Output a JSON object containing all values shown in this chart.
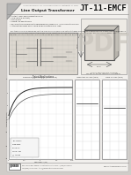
{
  "title": "JT-11-EMCF",
  "bg_color": "#e8e8e8",
  "paper_color": "#f2f0ed",
  "title_color": "#111111",
  "text_color": "#333333",
  "light_text": "#666666",
  "border_color": "#999999",
  "fold_color": "#b0b0b0",
  "fold_dark": "#888888",
  "footer_text": "jensen-transformers.com",
  "schematic_bg": "#ddd8d0",
  "chart_bg": "#e8e4de",
  "grid_color": "#c0bbb5",
  "curve_color": "#222222",
  "pdf_text_color": "#bbbbbb",
  "dim_box_color": "#ddd8d0",
  "table_bg": "#e0dbd5"
}
